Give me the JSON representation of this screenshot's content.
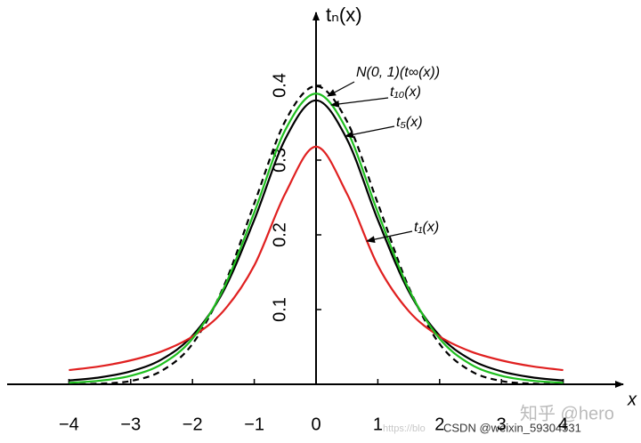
{
  "chart_data": {
    "type": "line",
    "x_label": "x",
    "y_label": "tₙ(x)",
    "x": [
      -4,
      -3.5,
      -3,
      -2.5,
      -2,
      -1.5,
      -1,
      -0.5,
      0,
      0.5,
      1,
      1.5,
      2,
      2.5,
      3,
      3.5,
      4
    ],
    "series": [
      {
        "name": "N(0, 1)(t∞(x))",
        "color": "#000000",
        "dashed": true,
        "values": [
          0.0001,
          0.0009,
          0.0044,
          0.018,
          0.054,
          0.13,
          0.242,
          0.352,
          0.399,
          0.352,
          0.242,
          0.13,
          0.054,
          0.018,
          0.0044,
          0.0009,
          0.0001
        ]
      },
      {
        "name": "t₁₀(x)",
        "color": "#1fbf1f",
        "dashed": false,
        "values": [
          0.002,
          0.0048,
          0.0114,
          0.0269,
          0.0611,
          0.1275,
          0.23,
          0.34,
          0.389,
          0.34,
          0.23,
          0.1275,
          0.0611,
          0.0269,
          0.0114,
          0.0048,
          0.002
        ]
      },
      {
        "name": "t₅(x)",
        "color": "#000000",
        "dashed": false,
        "values": [
          0.0051,
          0.0092,
          0.0173,
          0.0333,
          0.0651,
          0.1245,
          0.22,
          0.328,
          0.38,
          0.328,
          0.22,
          0.1245,
          0.0651,
          0.0333,
          0.0173,
          0.0092,
          0.0051
        ]
      },
      {
        "name": "t₁(x)",
        "color": "#e02020",
        "dashed": false,
        "values": [
          0.019,
          0.024,
          0.032,
          0.044,
          0.064,
          0.098,
          0.159,
          0.255,
          0.318,
          0.255,
          0.159,
          0.098,
          0.064,
          0.044,
          0.032,
          0.024,
          0.019
        ]
      }
    ],
    "xlim": [
      -5,
      5
    ],
    "ylim": [
      0,
      0.5
    ],
    "xticks": [
      {
        "value": -4,
        "label": "−4"
      },
      {
        "value": -3,
        "label": "−3"
      },
      {
        "value": -2,
        "label": "−2"
      },
      {
        "value": -1,
        "label": "−1"
      },
      0,
      1,
      2,
      3,
      4
    ],
    "yticks": [
      0.1,
      0.2,
      0.3,
      0.4
    ],
    "watermarks": [
      "https://blo",
      "CSDN @weixin_59304531",
      "知乎 @hero"
    ]
  }
}
